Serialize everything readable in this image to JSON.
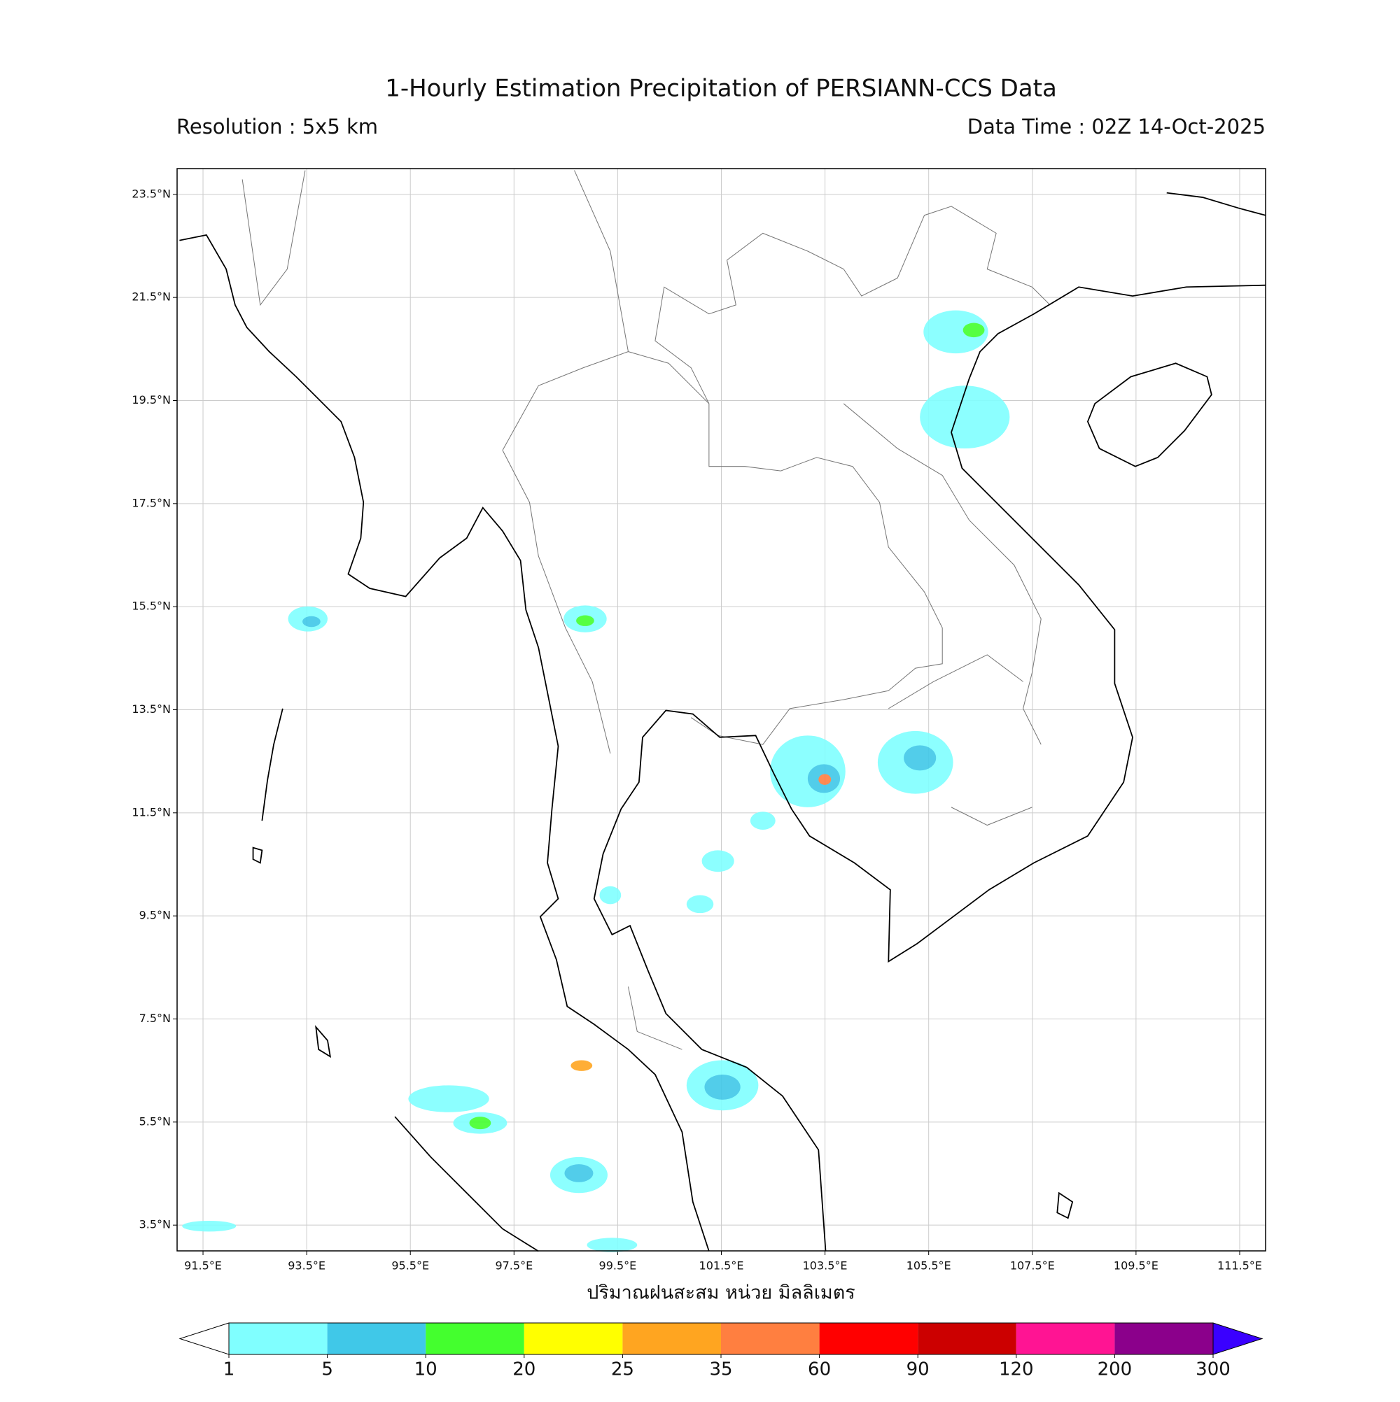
{
  "chart_data": {
    "type": "map",
    "title": "1-Hourly Estimation Precipitation of PERSIANN-CCS Data",
    "subtitle_left": "Resolution : 5x5 km",
    "subtitle_right": "Data Time : 02Z 14-Oct-2025",
    "xlabel": "ปริมาณฝนสะสม หน่วย มิลลิเมตร",
    "xlim": [
      91,
      112
    ],
    "ylim": [
      3,
      24
    ],
    "grid": true,
    "xticks": [
      {
        "value": 91.5,
        "label": "91.5°E"
      },
      {
        "value": 93.5,
        "label": "93.5°E"
      },
      {
        "value": 95.5,
        "label": "95.5°E"
      },
      {
        "value": 97.5,
        "label": "97.5°E"
      },
      {
        "value": 99.5,
        "label": "99.5°E"
      },
      {
        "value": 101.5,
        "label": "101.5°E"
      },
      {
        "value": 103.5,
        "label": "103.5°E"
      },
      {
        "value": 105.5,
        "label": "105.5°E"
      },
      {
        "value": 107.5,
        "label": "107.5°E"
      },
      {
        "value": 109.5,
        "label": "109.5°E"
      },
      {
        "value": 111.5,
        "label": "111.5°E"
      }
    ],
    "yticks": [
      {
        "value": 3.5,
        "label": "3.5°N"
      },
      {
        "value": 5.5,
        "label": "5.5°N"
      },
      {
        "value": 7.5,
        "label": "7.5°N"
      },
      {
        "value": 9.5,
        "label": "9.5°N"
      },
      {
        "value": 11.5,
        "label": "11.5°N"
      },
      {
        "value": 13.5,
        "label": "13.5°N"
      },
      {
        "value": 15.5,
        "label": "15.5°N"
      },
      {
        "value": 17.5,
        "label": "17.5°N"
      },
      {
        "value": 19.5,
        "label": "19.5°N"
      },
      {
        "value": 21.5,
        "label": "21.5°N"
      },
      {
        "value": 23.5,
        "label": "23.5°N"
      }
    ],
    "colorbar": {
      "levels": [
        1,
        5,
        10,
        20,
        25,
        35,
        60,
        90,
        120,
        200,
        300
      ],
      "colors": [
        "#80ffff",
        "#40c8e8",
        "#44ff2e",
        "#ffff00",
        "#ffa520",
        "#ff7f40",
        "#ff0000",
        "#cc0000",
        "#ff1493",
        "#8b008b"
      ],
      "under_color": "#ffffff",
      "over_color": "#3a00ff"
    }
  }
}
